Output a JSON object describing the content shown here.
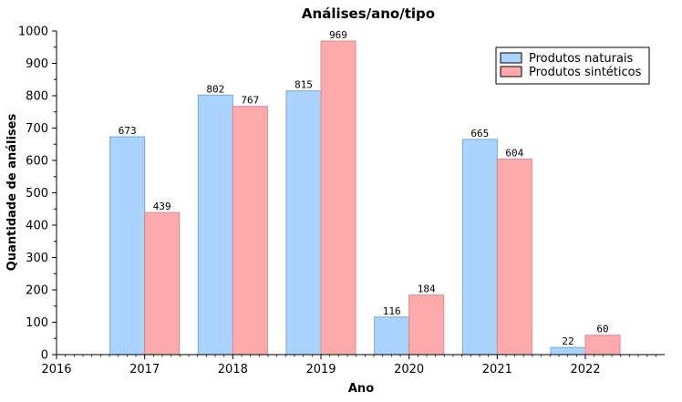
{
  "chart_data": {
    "type": "bar",
    "title": "Análises/ano/tipo",
    "xlabel": "Ano",
    "ylabel": "Quantidade de análises",
    "x_ticks": [
      "2016",
      "2017",
      "2018",
      "2019",
      "2020",
      "2021",
      "2022"
    ],
    "categories": [
      "2017",
      "2018",
      "2019",
      "2020",
      "2021",
      "2022"
    ],
    "series": [
      {
        "name": "Produtos naturais",
        "values": [
          673,
          802,
          815,
          116,
          665,
          22
        ],
        "color": "#aad4ff"
      },
      {
        "name": "Produtos sintéticos",
        "values": [
          439,
          767,
          969,
          184,
          604,
          60
        ],
        "color": "#ffaaaa"
      }
    ],
    "xlim": [
      2016,
      2022.9
    ],
    "ylim": [
      0,
      1000
    ],
    "y_ticks": [
      0,
      100,
      200,
      300,
      400,
      500,
      600,
      700,
      800,
      900,
      1000
    ],
    "grid": false,
    "legend_position": "top-right"
  }
}
